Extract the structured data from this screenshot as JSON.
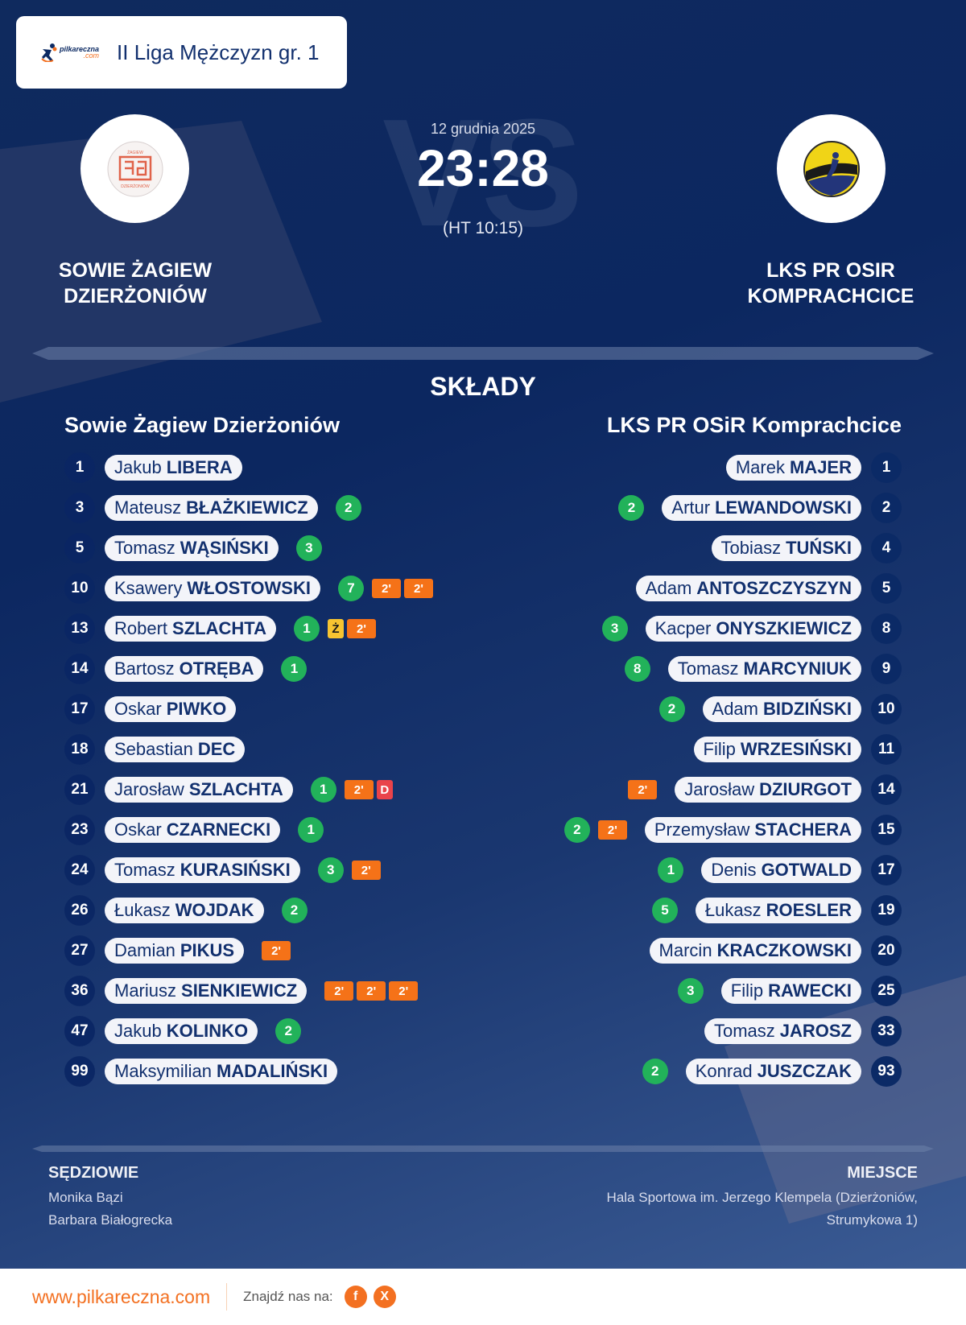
{
  "header": {
    "brand": "pilkareczna",
    "brand_suffix": ".com",
    "league": "II Liga Mężczyzn gr. 1"
  },
  "match": {
    "date": "12 grudnia 2025",
    "score": "23:28",
    "halftime": "(HT 10:15)",
    "vs_watermark": "VS"
  },
  "home": {
    "name_line1": "SOWIE ŻAGIEW",
    "name_line2": "DZIERŻONIÓW",
    "roster_title": "Sowie Żagiew Dzierżoniów",
    "players": [
      {
        "num": "1",
        "first": "Jakub",
        "last": "LIBERA",
        "goals": null,
        "cards": []
      },
      {
        "num": "3",
        "first": "Mateusz",
        "last": "BŁAŻKIEWICZ",
        "goals": "2",
        "cards": []
      },
      {
        "num": "5",
        "first": "Tomasz",
        "last": "WĄSIŃSKI",
        "goals": "3",
        "cards": []
      },
      {
        "num": "10",
        "first": "Ksawery",
        "last": "WŁOSTOWSKI",
        "goals": "7",
        "cards": [
          "2'",
          "2'"
        ]
      },
      {
        "num": "13",
        "first": "Robert",
        "last": "SZLACHTA",
        "goals": "1",
        "cards": [
          "Ż",
          "2'"
        ]
      },
      {
        "num": "14",
        "first": "Bartosz",
        "last": "OTRĘBA",
        "goals": "1",
        "cards": []
      },
      {
        "num": "17",
        "first": "Oskar",
        "last": "PIWKO",
        "goals": null,
        "cards": []
      },
      {
        "num": "18",
        "first": "Sebastian",
        "last": "DEC",
        "goals": null,
        "cards": []
      },
      {
        "num": "21",
        "first": "Jarosław",
        "last": "SZLACHTA",
        "goals": "1",
        "cards": [
          "2'",
          "D"
        ]
      },
      {
        "num": "23",
        "first": "Oskar",
        "last": "CZARNECKI",
        "goals": "1",
        "cards": []
      },
      {
        "num": "24",
        "first": "Tomasz",
        "last": "KURASIŃSKI",
        "goals": "3",
        "cards": [
          "2'"
        ]
      },
      {
        "num": "26",
        "first": "Łukasz",
        "last": "WOJDAK",
        "goals": "2",
        "cards": []
      },
      {
        "num": "27",
        "first": "Damian",
        "last": "PIKUS",
        "goals": null,
        "cards": [
          "2'"
        ]
      },
      {
        "num": "36",
        "first": "Mariusz",
        "last": "SIENKIEWICZ",
        "goals": null,
        "cards": [
          "2'",
          "2'",
          "2'"
        ]
      },
      {
        "num": "47",
        "first": "Jakub",
        "last": "KOLINKO",
        "goals": "2",
        "cards": []
      },
      {
        "num": "99",
        "first": "Maksymilian",
        "last": "MADALIŃSKI",
        "goals": null,
        "cards": []
      }
    ]
  },
  "away": {
    "name_line1": "LKS PR OSIR",
    "name_line2": "KOMPRACHCICE",
    "roster_title": "LKS PR OSiR Komprachcice",
    "players": [
      {
        "num": "1",
        "first": "Marek",
        "last": "MAJER",
        "goals": null,
        "cards": []
      },
      {
        "num": "2",
        "first": "Artur",
        "last": "LEWANDOWSKI",
        "goals": "2",
        "cards": []
      },
      {
        "num": "4",
        "first": "Tobiasz",
        "last": "TUŃSKI",
        "goals": null,
        "cards": []
      },
      {
        "num": "5",
        "first": "Adam",
        "last": "ANTOSZCZYSZYN",
        "goals": null,
        "cards": []
      },
      {
        "num": "8",
        "first": "Kacper",
        "last": "ONYSZKIEWICZ",
        "goals": "3",
        "cards": []
      },
      {
        "num": "9",
        "first": "Tomasz",
        "last": "MARCYNIUK",
        "goals": "8",
        "cards": []
      },
      {
        "num": "10",
        "first": "Adam",
        "last": "BIDZIŃSKI",
        "goals": "2",
        "cards": []
      },
      {
        "num": "11",
        "first": "Filip",
        "last": "WRZESIŃSKI",
        "goals": null,
        "cards": []
      },
      {
        "num": "14",
        "first": "Jarosław",
        "last": "DZIURGOT",
        "goals": null,
        "cards": [
          "2'"
        ]
      },
      {
        "num": "15",
        "first": "Przemysław",
        "last": "STACHERA",
        "goals": "2",
        "cards": [
          "2'"
        ]
      },
      {
        "num": "17",
        "first": "Denis",
        "last": "GOTWALD",
        "goals": "1",
        "cards": []
      },
      {
        "num": "19",
        "first": "Łukasz",
        "last": "ROESLER",
        "goals": "5",
        "cards": []
      },
      {
        "num": "20",
        "first": "Marcin",
        "last": "KRACZKOWSKI",
        "goals": null,
        "cards": []
      },
      {
        "num": "25",
        "first": "Filip",
        "last": "RAWECKI",
        "goals": "3",
        "cards": []
      },
      {
        "num": "33",
        "first": "Tomasz",
        "last": "JAROSZ",
        "goals": null,
        "cards": []
      },
      {
        "num": "93",
        "first": "Konrad",
        "last": "JUSZCZAK",
        "goals": "2",
        "cards": []
      }
    ]
  },
  "lineups_title": "SKŁADY",
  "referees": {
    "label": "SĘDZIOWIE",
    "names": [
      "Monika Bązi",
      "Barbara Białogrecka"
    ]
  },
  "venue": {
    "label": "MIEJSCE",
    "line1": "Hala Sportowa im. Jerzego Klempela (Dzierżoniów,",
    "line2": "Strumykowa 1)"
  },
  "footer": {
    "url": "www.pilkareczna.com",
    "find_us": "Znajdź nas na:",
    "social": [
      {
        "name": "facebook",
        "glyph": "f"
      },
      {
        "name": "x",
        "glyph": "X"
      }
    ]
  },
  "colors": {
    "navy": "#0c2760",
    "goal_green": "#22b25a",
    "suspension_orange": "#f57218",
    "yellow_card": "#f7c431",
    "red_card": "#e9434a",
    "brand_orange": "#f37021"
  }
}
